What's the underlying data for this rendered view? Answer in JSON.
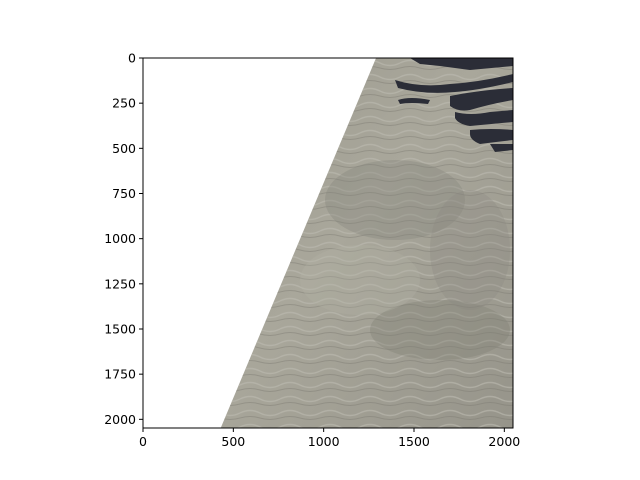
{
  "image_panel": {
    "content": "aerial view of a textured gray-brown surface (cloud or sea-ice texture) with dark channel features in the upper right, shown as a skewed swath; area left of the swath is blank white",
    "x_axis": {
      "range": [
        0,
        2048
      ],
      "ticks": [
        0,
        500,
        1000,
        1500,
        2000
      ],
      "tick_labels": [
        "0",
        "500",
        "1000",
        "1500",
        "2000"
      ]
    },
    "y_axis": {
      "range": [
        0,
        2048
      ],
      "inverted": true,
      "ticks": [
        0,
        250,
        500,
        750,
        1000,
        1250,
        1500,
        1750,
        2000
      ],
      "tick_labels": [
        "0",
        "250",
        "500",
        "750",
        "1000",
        "1250",
        "1500",
        "1750",
        "2000"
      ]
    },
    "swath": {
      "top_left_x": 1290,
      "bottom_left_x": 430
    },
    "colors": {
      "surface_light": "#a8a69a",
      "surface_mid": "#8f8d82",
      "surface_dark": "#6f6d66",
      "channel_dark": "#2a2c36",
      "axis": "#000000",
      "background": "#ffffff"
    }
  }
}
